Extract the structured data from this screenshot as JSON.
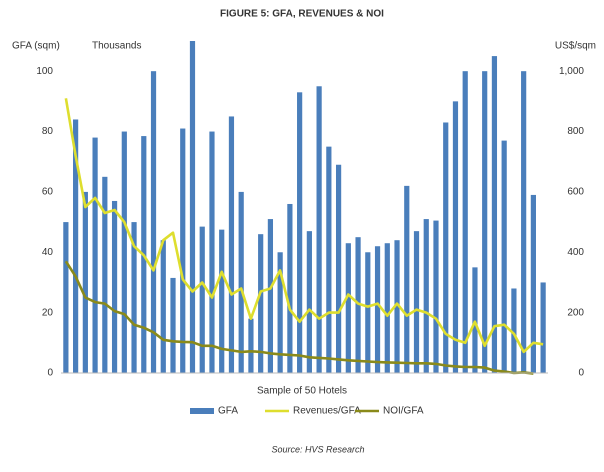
{
  "chart_data": {
    "type": "bar_line",
    "title": "FIGURE 5: GFA, REVENUES & NOI",
    "y_label": "GFA (sqm)",
    "y_unit": "Thousands",
    "y2_label": "US$/sqm",
    "x_label": "Sample of 50 Hotels",
    "source": "Source: HVS Research",
    "categories": [
      null,
      null,
      null,
      null,
      null,
      null,
      null,
      null,
      null,
      null,
      null,
      null,
      null,
      null,
      null,
      null,
      null,
      null,
      null,
      null,
      null,
      null,
      null,
      null,
      null,
      null,
      null,
      null,
      null,
      null,
      null,
      null,
      null,
      null,
      null,
      null,
      null,
      null,
      null,
      null,
      null,
      null,
      null,
      null,
      null,
      null,
      null,
      null,
      null,
      null
    ],
    "ylim": [
      0,
      110
    ],
    "yticks": [
      0,
      20,
      40,
      60,
      80,
      100
    ],
    "y2lim": [
      0,
      1100
    ],
    "y2ticks": [
      0,
      200,
      400,
      600,
      800,
      {
        "value": 1000,
        "label": "1,000"
      }
    ],
    "legend": "bottom",
    "series": [
      {
        "name": "GFA",
        "type": "bar",
        "color": "#4a7ebb",
        "values": [
          50,
          84,
          60,
          78,
          65,
          57,
          80,
          50,
          78.5,
          100,
          44,
          31.5,
          81,
          110,
          48.5,
          80,
          47.5,
          85,
          60,
          18,
          46,
          51,
          40,
          56,
          93,
          47,
          95,
          75,
          69,
          43,
          45,
          40,
          42,
          43,
          44,
          62,
          47,
          51,
          50.5,
          83,
          90,
          100,
          35,
          100,
          105,
          77,
          28,
          100,
          59,
          30
        ]
      },
      {
        "name": "Revenues/GFA",
        "type": "line",
        "axis": "y2",
        "color": "#dede2e",
        "values": [
          910,
          720,
          550,
          580,
          530,
          540,
          500,
          420,
          390,
          340,
          440,
          465,
          310,
          270,
          300,
          250,
          335,
          260,
          280,
          180,
          270,
          280,
          340,
          210,
          170,
          210,
          180,
          200,
          200,
          260,
          230,
          220,
          230,
          190,
          230,
          190,
          210,
          200,
          180,
          130,
          110,
          100,
          170,
          90,
          155,
          160,
          130,
          70,
          100,
          95
        ]
      },
      {
        "name": "NOI/GFA",
        "type": "line",
        "axis": "y2",
        "color": "#8a8a1a",
        "values": [
          370,
          320,
          250,
          235,
          230,
          205,
          195,
          160,
          150,
          135,
          110,
          105,
          103,
          102,
          90,
          90,
          80,
          75,
          70,
          72,
          70,
          65,
          62,
          60,
          58,
          52,
          50,
          48,
          45,
          42,
          40,
          38,
          36,
          35,
          34,
          33,
          32,
          32,
          30,
          25,
          22,
          20,
          20,
          18,
          8,
          5,
          0,
          2,
          -2,
          null
        ]
      }
    ]
  }
}
